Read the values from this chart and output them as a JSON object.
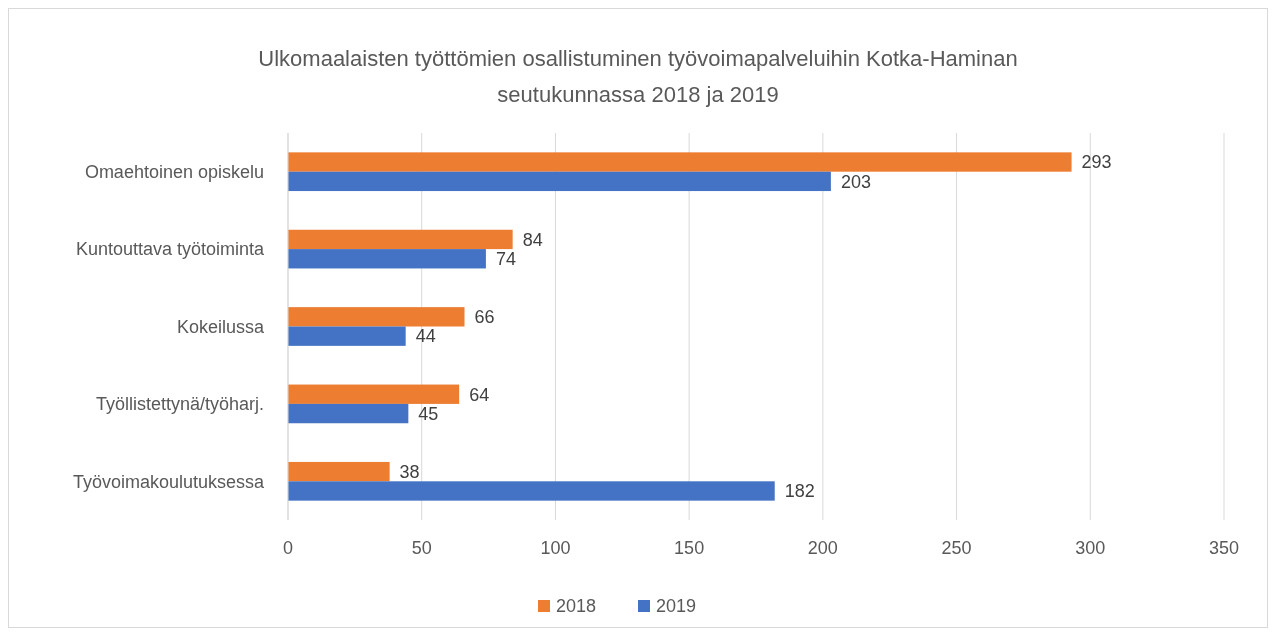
{
  "chart_data": {
    "type": "bar",
    "orientation": "horizontal",
    "title": "Ulkomaalaisten työttömien osallistuminen työvoimapalveluihin Kotka-Haminan seutukunnassa 2018 ja 2019",
    "categories": [
      "Omaehtoinen opiskelu",
      "Kuntouttava työtoiminta",
      "Kokeilussa",
      "Työllistettynä/työharj.",
      "Työvoimakoulutuksessa"
    ],
    "series": [
      {
        "name": "2018",
        "color": "#ed7d31",
        "values": [
          293,
          84,
          66,
          64,
          38
        ]
      },
      {
        "name": "2019",
        "color": "#4472c4",
        "values": [
          203,
          74,
          44,
          45,
          182
        ]
      }
    ],
    "xlim": [
      0,
      350
    ],
    "xticks": [
      0,
      50,
      100,
      150,
      200,
      250,
      300,
      350
    ],
    "grid": "x",
    "legend": "bottom",
    "data_labels": true
  }
}
